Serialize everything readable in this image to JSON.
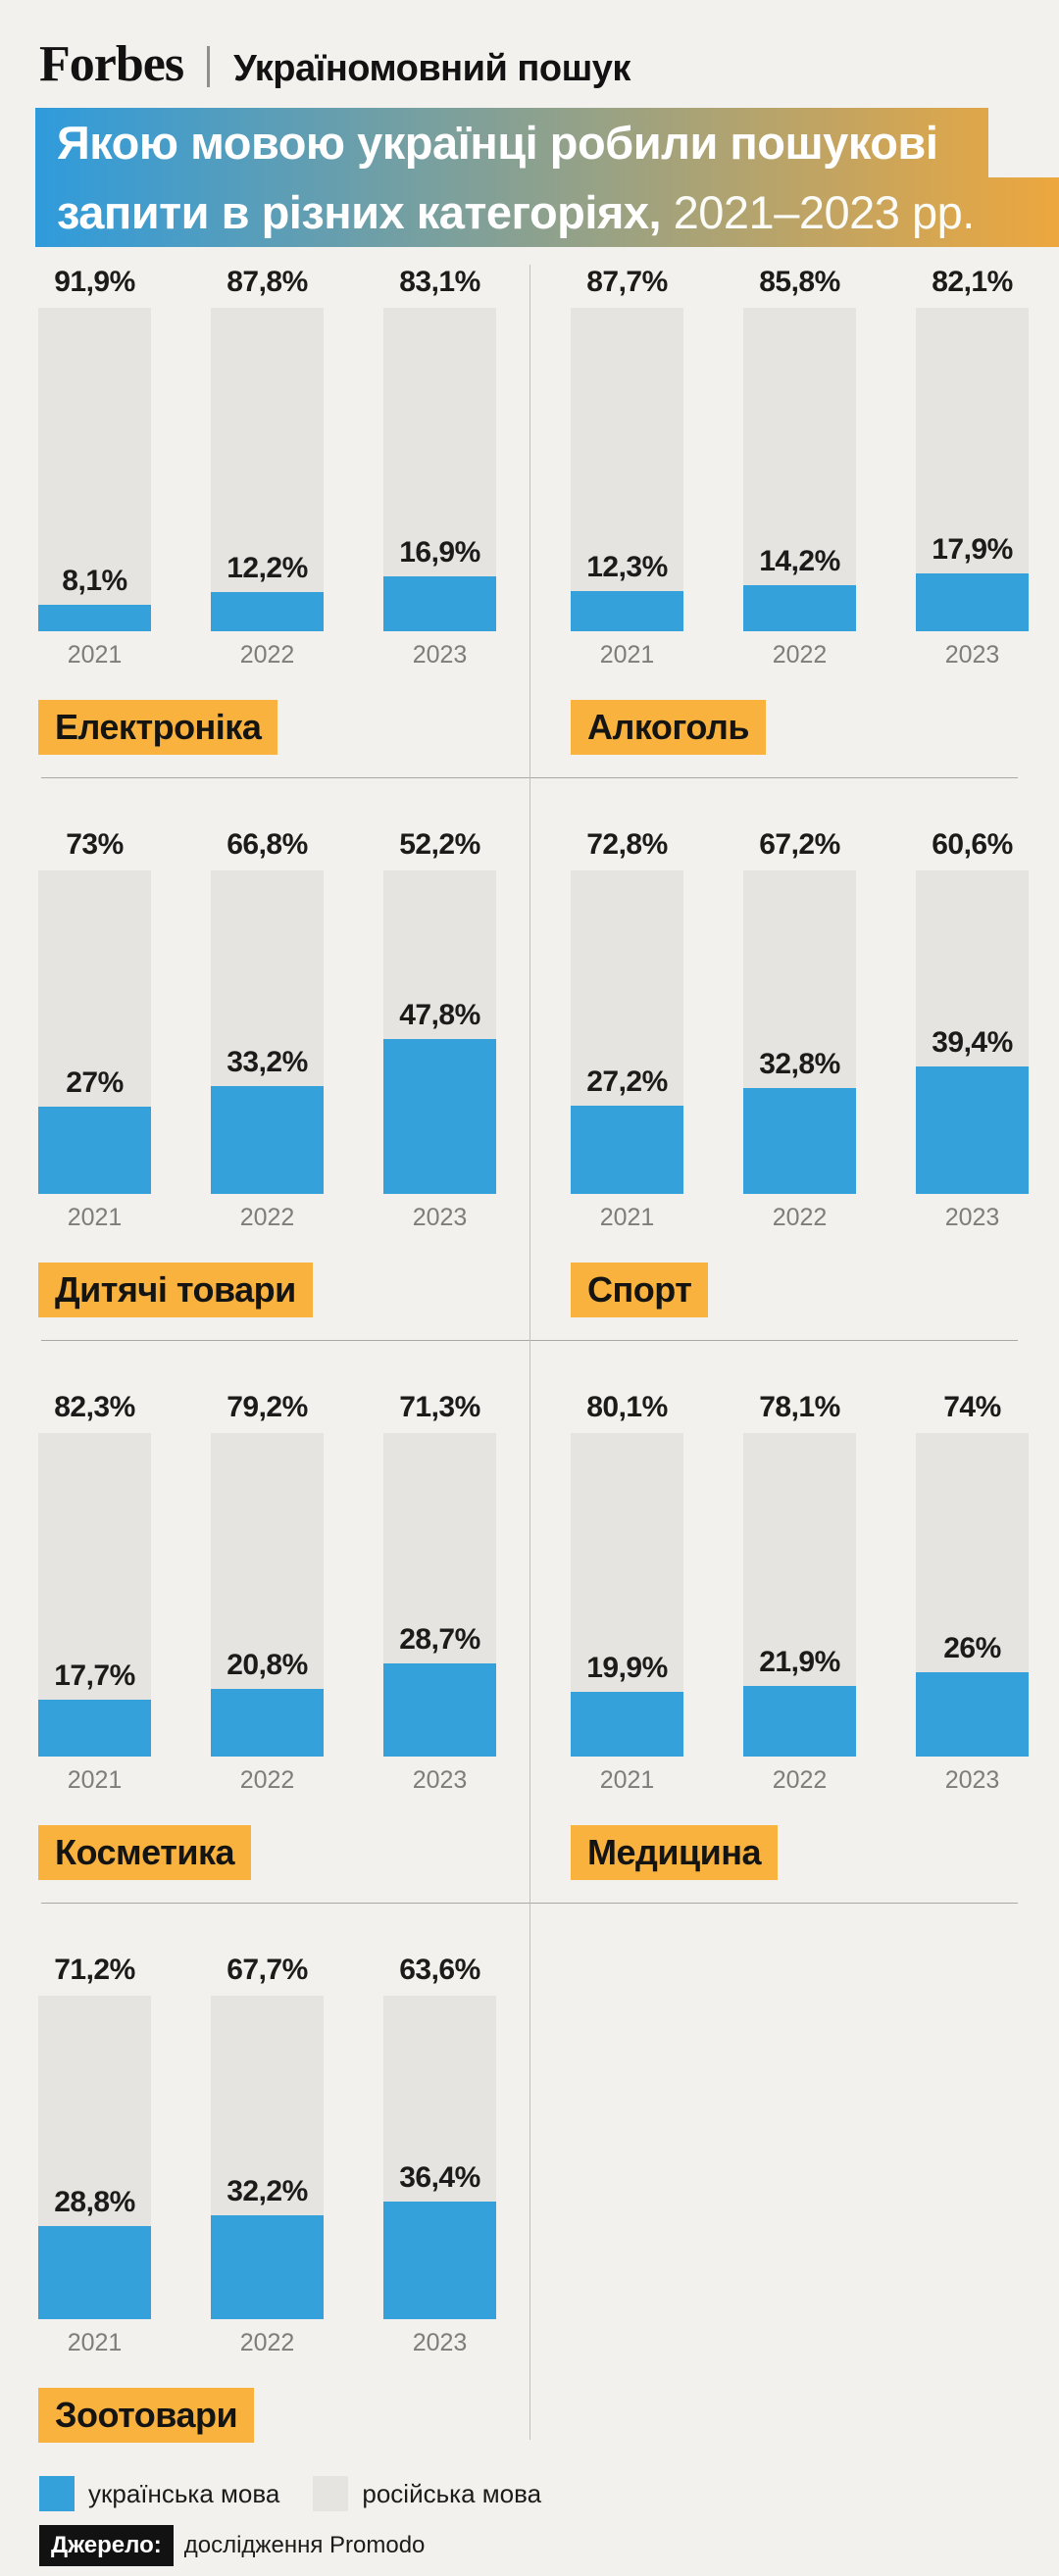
{
  "header": {
    "logo": "Forbes",
    "separator": "|",
    "subtitle": "Україномовний пошук"
  },
  "banner": {
    "line1": "Якою мовою українці робили пошукові",
    "line2_bold": "запити в різних категоріях,",
    "line2_regular": "2021–2023 рр."
  },
  "chart_data": {
    "type": "bar",
    "subtype": "stacked-percent",
    "title": "Якою мовою українці робили пошукові запити в різних категоріях, 2021–2023 рр.",
    "unit": "%",
    "ylim": [
      0,
      100
    ],
    "years": [
      "2021",
      "2022",
      "2023"
    ],
    "legend": [
      {
        "label": "українська мова",
        "color": "#34A1DB"
      },
      {
        "label": "російська мова",
        "color": "#E5E4E1"
      }
    ],
    "categories": [
      {
        "name": "Електроніка",
        "russian": [
          91.9,
          87.8,
          83.1
        ],
        "ukrainian": [
          8.1,
          12.2,
          16.9
        ],
        "russian_labels": [
          "91,9%",
          "87,8%",
          "83,1%"
        ],
        "ukrainian_labels": [
          "8,1%",
          "12,2%",
          "16,9%"
        ]
      },
      {
        "name": "Алкоголь",
        "russian": [
          87.7,
          85.8,
          82.1
        ],
        "ukrainian": [
          12.3,
          14.2,
          17.9
        ],
        "russian_labels": [
          "87,7%",
          "85,8%",
          "82,1%"
        ],
        "ukrainian_labels": [
          "12,3%",
          "14,2%",
          "17,9%"
        ]
      },
      {
        "name": "Дитячі товари",
        "russian": [
          73,
          66.8,
          52.2
        ],
        "ukrainian": [
          27,
          33.2,
          47.8
        ],
        "russian_labels": [
          "73%",
          "66,8%",
          "52,2%"
        ],
        "ukrainian_labels": [
          "27%",
          "33,2%",
          "47,8%"
        ]
      },
      {
        "name": "Спорт",
        "russian": [
          72.8,
          67.2,
          60.6
        ],
        "ukrainian": [
          27.2,
          32.8,
          39.4
        ],
        "russian_labels": [
          "72,8%",
          "67,2%",
          "60,6%"
        ],
        "ukrainian_labels": [
          "27,2%",
          "32,8%",
          "39,4%"
        ]
      },
      {
        "name": "Косметика",
        "russian": [
          82.3,
          79.2,
          71.3
        ],
        "ukrainian": [
          17.7,
          20.8,
          28.7
        ],
        "russian_labels": [
          "82,3%",
          "79,2%",
          "71,3%"
        ],
        "ukrainian_labels": [
          "17,7%",
          "20,8%",
          "28,7%"
        ]
      },
      {
        "name": "Медицина",
        "russian": [
          80.1,
          78.1,
          74
        ],
        "ukrainian": [
          19.9,
          21.9,
          26
        ],
        "russian_labels": [
          "80,1%",
          "78,1%",
          "74%"
        ],
        "ukrainian_labels": [
          "19,9%",
          "21,9%",
          "26%"
        ]
      },
      {
        "name": "Зоотовари",
        "russian": [
          71.2,
          67.7,
          63.6
        ],
        "ukrainian": [
          28.8,
          32.2,
          36.4
        ],
        "russian_labels": [
          "71,2%",
          "67,7%",
          "63,6%"
        ],
        "ukrainian_labels": [
          "28,8%",
          "32,2%",
          "36,4%"
        ]
      }
    ]
  },
  "source": {
    "label": "Джерело:",
    "text": "дослідження Promodo"
  },
  "colors": {
    "background": "#F2F1EE",
    "ukrainian_blue": "#34A1DB",
    "russian_gray": "#E5E4E1",
    "badge_orange": "#F9B23E",
    "banner_gradient_left": "#2F9BDC",
    "banner_gradient_right": "#EDA73E"
  }
}
